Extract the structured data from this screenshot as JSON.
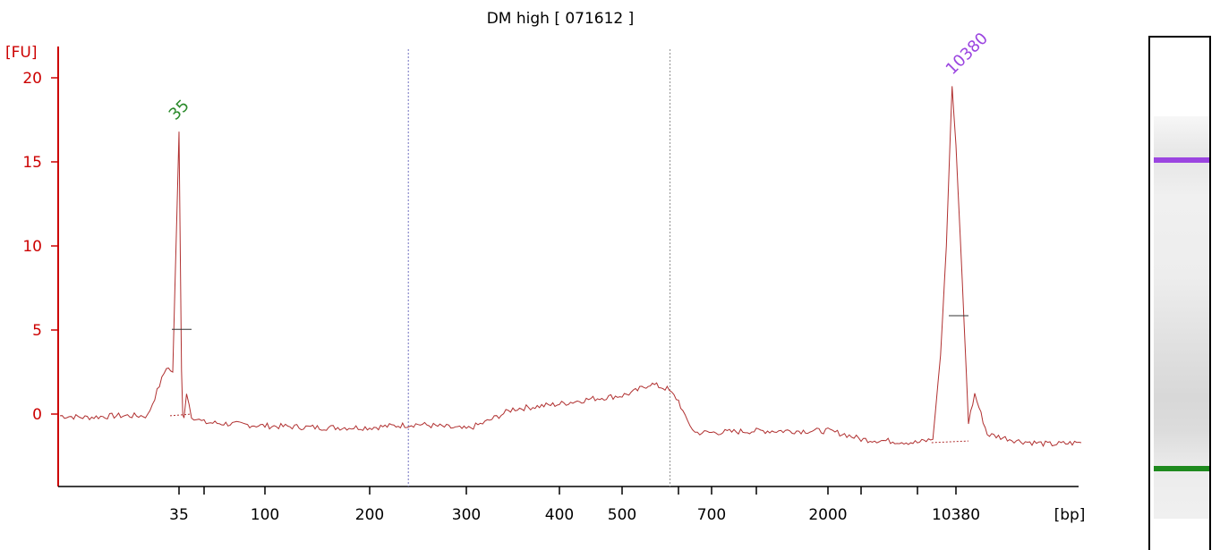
{
  "chart_data": {
    "type": "line",
    "title": "DM high  [ 071612 ]",
    "ylabel": "[FU]",
    "xlabel": "[bp]",
    "ylim": [
      -4,
      21
    ],
    "yticks": [
      0,
      5,
      10,
      15,
      20
    ],
    "x_ticks": [
      "35",
      "",
      "100",
      "200",
      "300",
      "400",
      "500",
      "",
      "700",
      "",
      "2000",
      "",
      "",
      "10380"
    ],
    "peaks": [
      {
        "label": "35",
        "value": 16.8,
        "color": "#2a8a2a"
      },
      {
        "label": "10380",
        "value": 19.5,
        "color": "#9b45e0"
      }
    ],
    "region_markers": [
      "265",
      "600"
    ],
    "series": [
      {
        "color": "#b03030",
        "x_tick_index": [
          -1.9,
          -1.5,
          -1,
          -0.5,
          -0.2,
          -0.1,
          0,
          0.1,
          0.15,
          0.2,
          0.3,
          0.5,
          0.7,
          1,
          1.5,
          2,
          2.5,
          3,
          3.5,
          4,
          4.2,
          4.5,
          5,
          5.5,
          6,
          6.2,
          6.5,
          6.8,
          7,
          7.2,
          7.5,
          8,
          9,
          10,
          10.5,
          11,
          12,
          12.4,
          12.6,
          12.75,
          12.9,
          13,
          13.1,
          13.2,
          13.3,
          13.5,
          14,
          14.5,
          15
        ],
        "values": [
          -0.1,
          -0.2,
          -0.1,
          -0.1,
          2.8,
          2.5,
          16.8,
          2.5,
          -0.1,
          -0.1,
          1.3,
          -0.1,
          -0.3,
          -0.5,
          -0.6,
          -0.7,
          -0.8,
          -0.8,
          -0.6,
          -0.9,
          -0.5,
          0.3,
          0.6,
          0.9,
          1.1,
          1.3,
          1.8,
          1.5,
          0.8,
          -0.2,
          -1.1,
          -1.1,
          -1.0,
          -1.0,
          -1.2,
          -1.5,
          -1.7,
          -1.5,
          3.5,
          10.0,
          19.5,
          16.0,
          8.0,
          -0.5,
          1.2,
          -1.2,
          -1.6,
          -1.8,
          -1.7
        ]
      }
    ]
  }
}
